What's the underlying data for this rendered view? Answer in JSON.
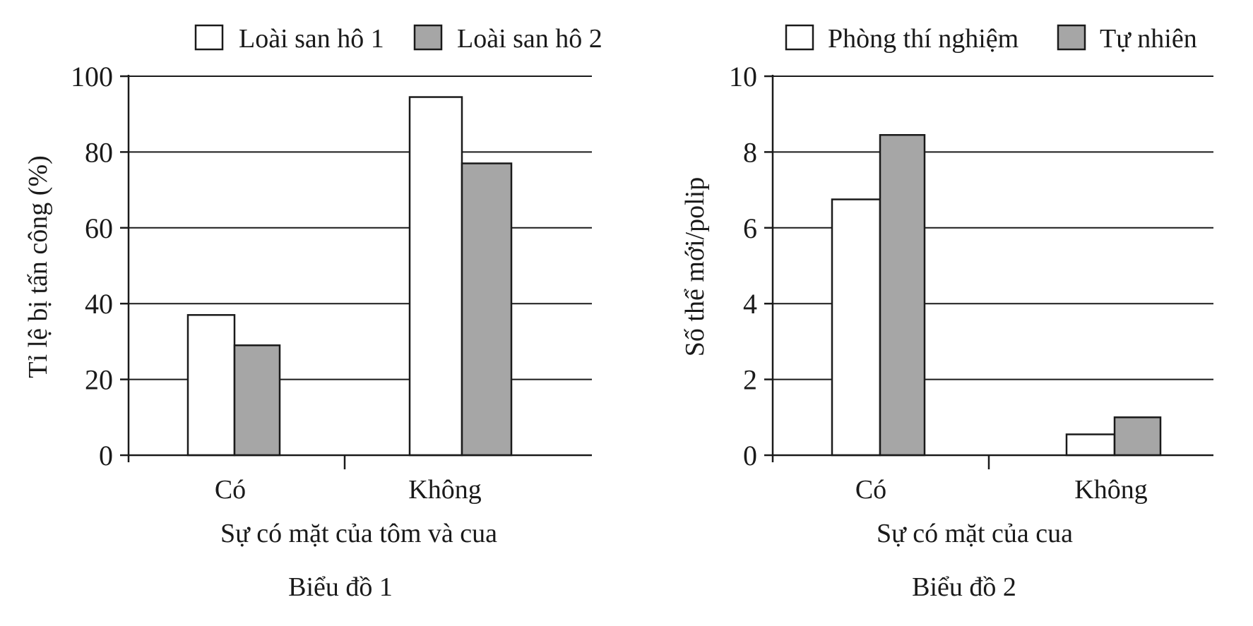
{
  "colors": {
    "series_1": "#ffffff",
    "series_2": "#a6a6a6",
    "stroke": "#1a1a1a"
  },
  "chart_data": [
    {
      "type": "bar",
      "categories": [
        "Có",
        "Không"
      ],
      "series": [
        {
          "name": "Loài san hô 1",
          "values": [
            37,
            94.5
          ]
        },
        {
          "name": "Loài san hô 2",
          "values": [
            29,
            77
          ]
        }
      ],
      "ylim": [
        0,
        100
      ],
      "yticks": [
        "0",
        "20",
        "40",
        "60",
        "80",
        "100"
      ],
      "xlabel": "Sự có mặt của tôm và cua",
      "ylabel": "Tỉ lệ bị tấn công (%)",
      "caption": "Biểu đồ 1",
      "grid": true,
      "legend": "top"
    },
    {
      "type": "bar",
      "categories": [
        "Có",
        "Không"
      ],
      "series": [
        {
          "name": "Phòng thí nghiệm",
          "values": [
            6.75,
            0.55
          ]
        },
        {
          "name": "Tự nhiên",
          "values": [
            8.45,
            1.0
          ]
        }
      ],
      "ylim": [
        0,
        10
      ],
      "yticks": [
        "0",
        "2",
        "4",
        "6",
        "8",
        "10"
      ],
      "xlabel": "Sự có mặt của cua",
      "ylabel": "Số thể mới/polip",
      "caption": "Biểu đồ 2",
      "grid": true,
      "legend": "top"
    }
  ]
}
